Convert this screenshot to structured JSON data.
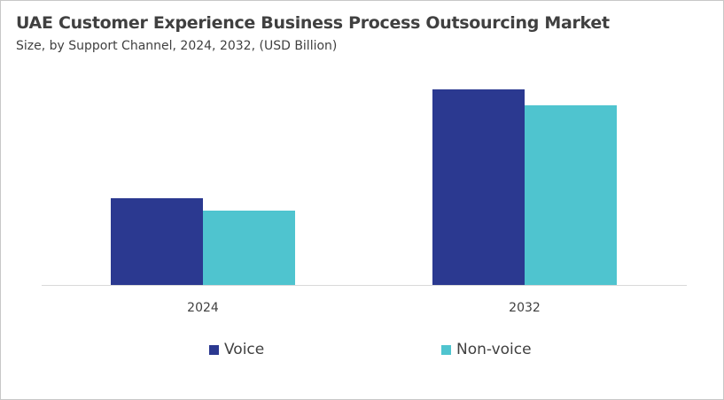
{
  "chart_data": {
    "type": "bar",
    "title": "UAE Customer Experience Business Process Outsourcing Market",
    "subtitle": "Size, by Support Channel, 2024, 2032, (USD Billion)",
    "categories": [
      "2024",
      "2032"
    ],
    "series": [
      {
        "name": "Voice",
        "values": [
          0.98,
          2.21
        ],
        "color": "#2b3990"
      },
      {
        "name": "Non-voice",
        "values": [
          0.84,
          2.03
        ],
        "color": "#4fc4cf"
      }
    ],
    "xlabel": "",
    "ylabel": "",
    "ylim": [
      0,
      2.5
    ],
    "y_axis_visible": false,
    "grid": false,
    "legend_position": "bottom"
  }
}
